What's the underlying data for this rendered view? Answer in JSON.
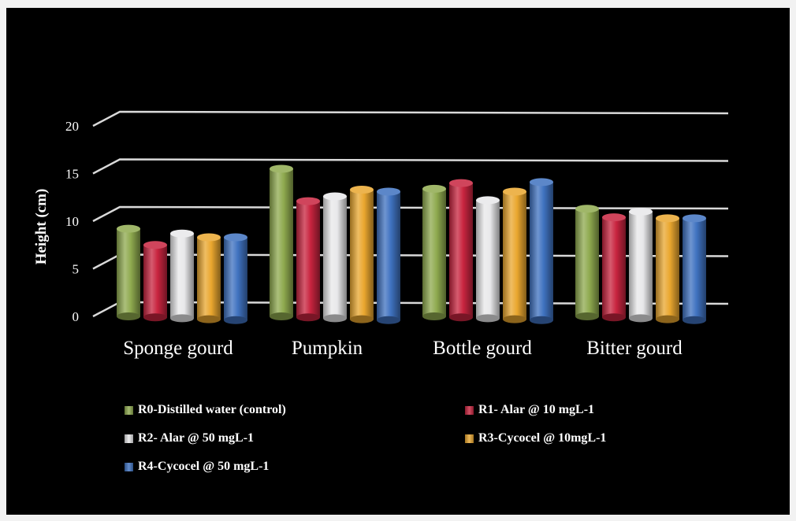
{
  "chart_data": {
    "type": "bar",
    "style": "3d-cylinder",
    "title": "",
    "xlabel": "",
    "ylabel": "Height (cm)",
    "ylim": [
      0,
      20
    ],
    "yticks": [
      "0",
      "5",
      "10",
      "15",
      "20"
    ],
    "grid": true,
    "legend_position": "bottom",
    "categories": [
      "Sponge gourd",
      "Pumpkin",
      "Bottle gourd",
      "Bitter gourd"
    ],
    "series": [
      {
        "name": "R0-Distilled water (control)",
        "color": "#8faa4f",
        "values": [
          9.2,
          15.5,
          13.4,
          11.3
        ]
      },
      {
        "name": "R1- Alar @ 10 mgL-1",
        "color": "#c8243f",
        "values": [
          7.6,
          12.2,
          14.1,
          10.5
        ]
      },
      {
        "name": "R2- Alar @ 50 mgL-1",
        "color": "#e8e8ea",
        "values": [
          8.9,
          12.8,
          12.4,
          11.2
        ]
      },
      {
        "name": "R3-Cycocel @ 10mgL-1",
        "color": "#eaa72f",
        "values": [
          8.6,
          13.6,
          13.4,
          10.6
        ]
      },
      {
        "name": "R4-Cycocel @ 50 mgL-1",
        "color": "#3f72c0",
        "values": [
          8.7,
          13.5,
          14.5,
          10.7
        ]
      }
    ]
  }
}
